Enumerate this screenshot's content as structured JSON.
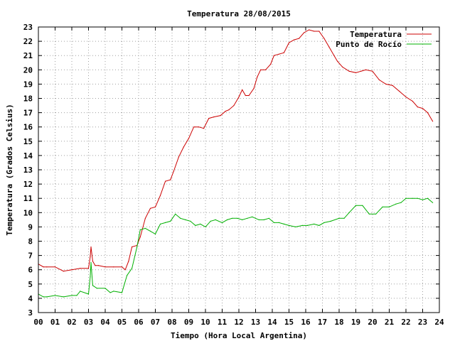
{
  "chart_data": {
    "type": "line",
    "title": "Temperatura 28/08/2015",
    "xlabel": "Tiempo (Hora Local Argentina)",
    "ylabel": "Temperatura (Grados Celsius)",
    "xlim": [
      0,
      24
    ],
    "ylim": [
      3,
      23
    ],
    "xticks": [
      "00",
      "01",
      "02",
      "03",
      "04",
      "05",
      "06",
      "07",
      "08",
      "09",
      "10",
      "11",
      "12",
      "13",
      "14",
      "15",
      "16",
      "17",
      "18",
      "19",
      "20",
      "21",
      "22",
      "23",
      "24"
    ],
    "yticks": [
      "3",
      "4",
      "5",
      "6",
      "7",
      "8",
      "9",
      "10",
      "11",
      "12",
      "13",
      "14",
      "15",
      "16",
      "17",
      "18",
      "19",
      "20",
      "21",
      "22",
      "23"
    ],
    "grid": true,
    "legend_position": "top-right",
    "series": [
      {
        "name": "Temperatura",
        "color": "#cc0000",
        "x": [
          0.0,
          0.3,
          0.5,
          1.0,
          1.5,
          2.0,
          2.5,
          3.0,
          3.1,
          3.15,
          3.25,
          3.4,
          3.6,
          4.0,
          4.5,
          5.0,
          5.2,
          5.4,
          5.6,
          5.9,
          6.1,
          6.4,
          6.7,
          7.0,
          7.3,
          7.6,
          7.9,
          8.1,
          8.4,
          8.7,
          9.0,
          9.3,
          9.6,
          9.9,
          10.2,
          10.5,
          10.9,
          11.2,
          11.4,
          11.7,
          12.0,
          12.2,
          12.4,
          12.6,
          12.9,
          13.1,
          13.3,
          13.6,
          13.9,
          14.1,
          14.4,
          14.7,
          15.0,
          15.3,
          15.6,
          15.9,
          16.2,
          16.5,
          16.8,
          17.1,
          17.4,
          17.7,
          17.9,
          18.2,
          18.6,
          19.0,
          19.3,
          19.6,
          20.0,
          20.4,
          20.8,
          21.2,
          21.6,
          22.0,
          22.4,
          22.7,
          23.0,
          23.3,
          23.6
        ],
        "y": [
          6.4,
          6.2,
          6.2,
          6.2,
          5.9,
          6.0,
          6.1,
          6.1,
          6.9,
          7.6,
          6.6,
          6.3,
          6.3,
          6.2,
          6.2,
          6.2,
          6.0,
          6.6,
          7.6,
          7.7,
          8.3,
          9.6,
          10.3,
          10.4,
          11.2,
          12.2,
          12.3,
          12.9,
          13.9,
          14.6,
          15.2,
          16.0,
          16.0,
          15.9,
          16.6,
          16.7,
          16.8,
          17.1,
          17.2,
          17.5,
          18.1,
          18.6,
          18.2,
          18.2,
          18.7,
          19.5,
          20.0,
          20.0,
          20.4,
          21.0,
          21.1,
          21.2,
          21.9,
          22.1,
          22.2,
          22.6,
          22.8,
          22.7,
          22.7,
          22.2,
          21.6,
          21.0,
          20.6,
          20.2,
          19.9,
          19.8,
          19.9,
          20.0,
          19.9,
          19.3,
          19.0,
          18.9,
          18.5,
          18.1,
          17.8,
          17.4,
          17.3,
          17.0,
          16.4
        ]
      },
      {
        "name": "Punto de Rocío",
        "color": "#00b000",
        "x": [
          0.0,
          0.3,
          0.5,
          1.0,
          1.5,
          2.0,
          2.3,
          2.5,
          3.0,
          3.1,
          3.15,
          3.25,
          3.5,
          4.0,
          4.3,
          4.5,
          5.0,
          5.3,
          5.6,
          5.9,
          6.1,
          6.4,
          6.7,
          7.0,
          7.3,
          7.6,
          7.9,
          8.2,
          8.5,
          8.8,
          9.1,
          9.4,
          9.7,
          10.0,
          10.3,
          10.6,
          11.0,
          11.3,
          11.6,
          11.9,
          12.2,
          12.5,
          12.8,
          13.2,
          13.5,
          13.8,
          14.1,
          14.4,
          14.7,
          15.0,
          15.4,
          15.8,
          16.1,
          16.5,
          16.8,
          17.1,
          17.5,
          18.0,
          18.3,
          18.6,
          19.0,
          19.4,
          19.8,
          20.2,
          20.6,
          21.0,
          21.4,
          21.7,
          22.0,
          22.4,
          22.7,
          23.0,
          23.3,
          23.6
        ],
        "y": [
          4.3,
          4.1,
          4.1,
          4.2,
          4.1,
          4.2,
          4.2,
          4.5,
          4.3,
          5.5,
          6.5,
          4.9,
          4.7,
          4.7,
          4.4,
          4.5,
          4.4,
          5.6,
          6.1,
          7.6,
          8.8,
          8.9,
          8.7,
          8.5,
          9.2,
          9.3,
          9.4,
          9.9,
          9.6,
          9.5,
          9.4,
          9.1,
          9.2,
          9.0,
          9.4,
          9.5,
          9.3,
          9.5,
          9.6,
          9.6,
          9.5,
          9.6,
          9.7,
          9.5,
          9.5,
          9.6,
          9.3,
          9.3,
          9.2,
          9.1,
          9.0,
          9.1,
          9.1,
          9.2,
          9.1,
          9.3,
          9.4,
          9.6,
          9.6,
          10.0,
          10.5,
          10.5,
          9.9,
          9.9,
          10.4,
          10.4,
          10.6,
          10.7,
          11.0,
          11.0,
          11.0,
          10.9,
          11.0,
          10.7
        ]
      }
    ]
  }
}
